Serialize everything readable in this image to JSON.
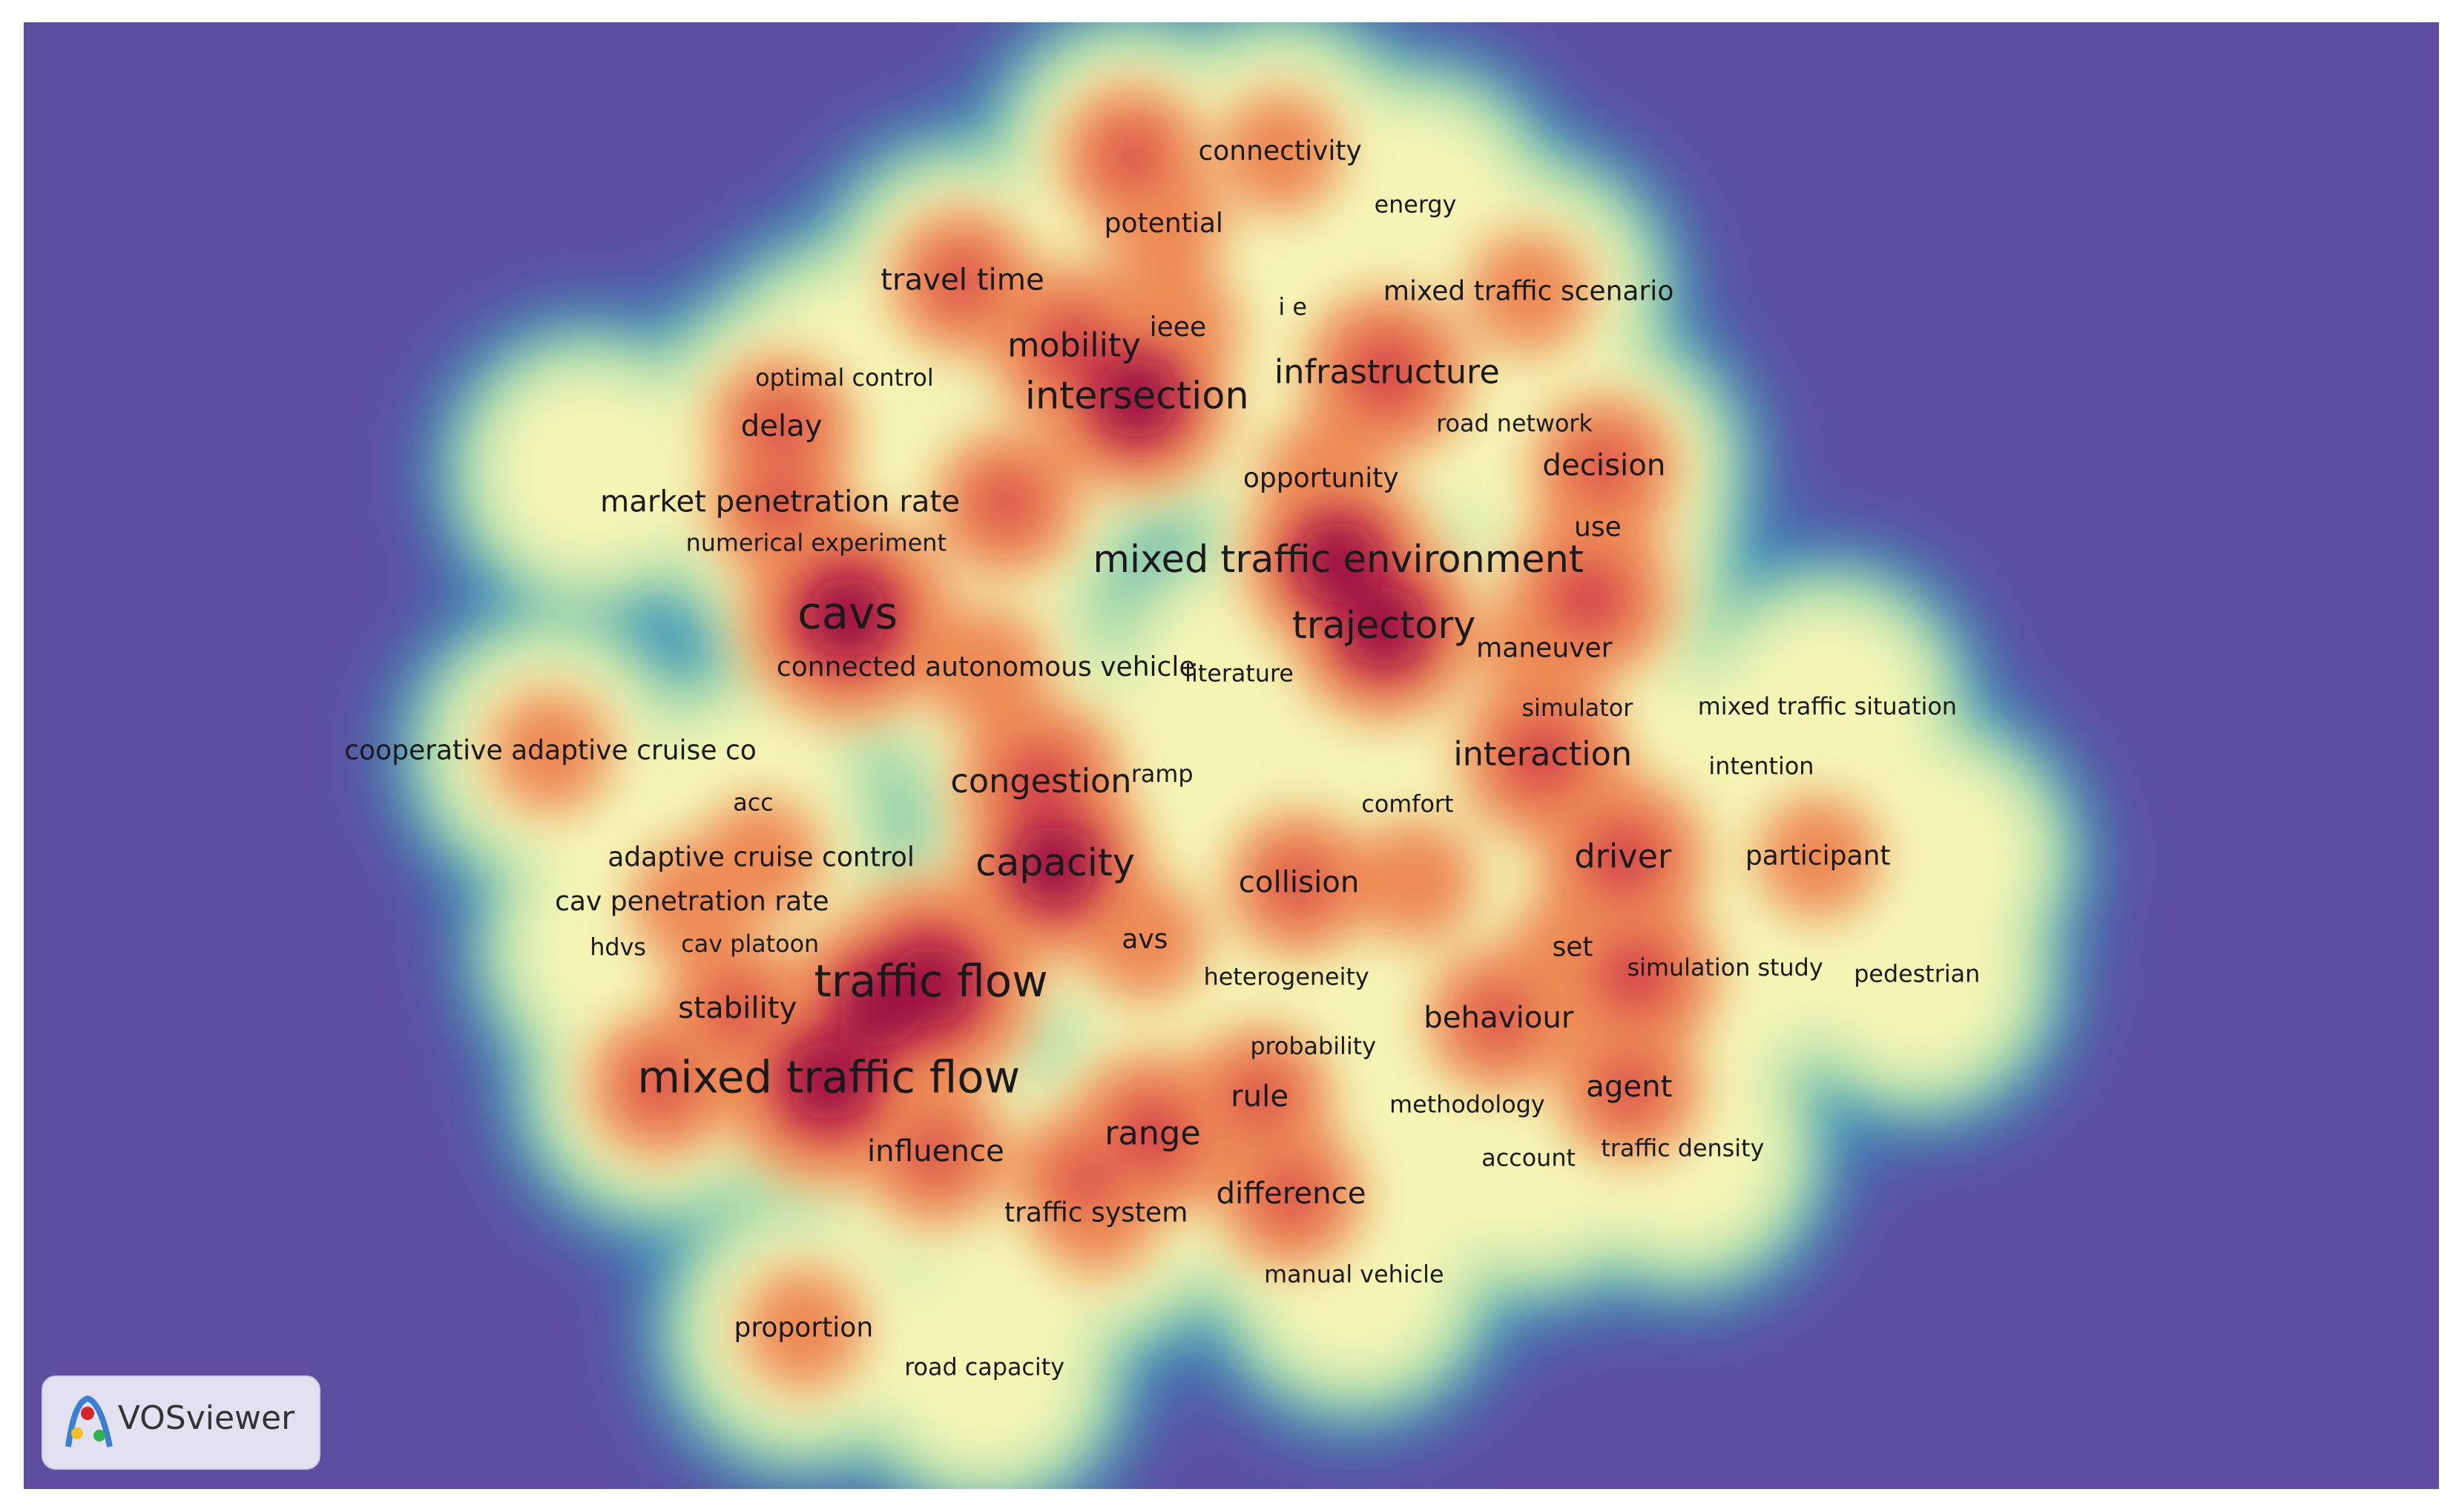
{
  "terms": [
    "connectivity",
    "energy",
    "potential",
    "travel time",
    "mixed traffic scenario",
    "i e",
    "ieee",
    "mobility",
    "infrastructure",
    "optimal control",
    "intersection",
    "delay",
    "road network",
    "decision",
    "opportunity",
    "market penetration rate",
    "use",
    "numerical experiment",
    "mixed traffic environment",
    "cavs",
    "trajectory",
    "maneuver",
    "connected autonomous vehicle",
    "literature",
    "simulator",
    "mixed traffic situation",
    "cooperative adaptive cruise co",
    "interaction",
    "intention",
    "congestion",
    "ramp",
    "comfort",
    "acc",
    "adaptive cruise control",
    "driver",
    "participant",
    "capacity",
    "collision",
    "cav penetration rate",
    "hdvs",
    "cav platoon",
    "avs",
    "set",
    "simulation study",
    "pedestrian",
    "traffic flow",
    "heterogeneity",
    "stability",
    "behaviour",
    "probability",
    "mixed traffic flow",
    "rule",
    "agent",
    "methodology",
    "range",
    "influence",
    "account",
    "traffic density",
    "difference",
    "traffic system",
    "manual vehicle",
    "proportion",
    "road capacity"
  ],
  "logo": "VOSviewer"
}
